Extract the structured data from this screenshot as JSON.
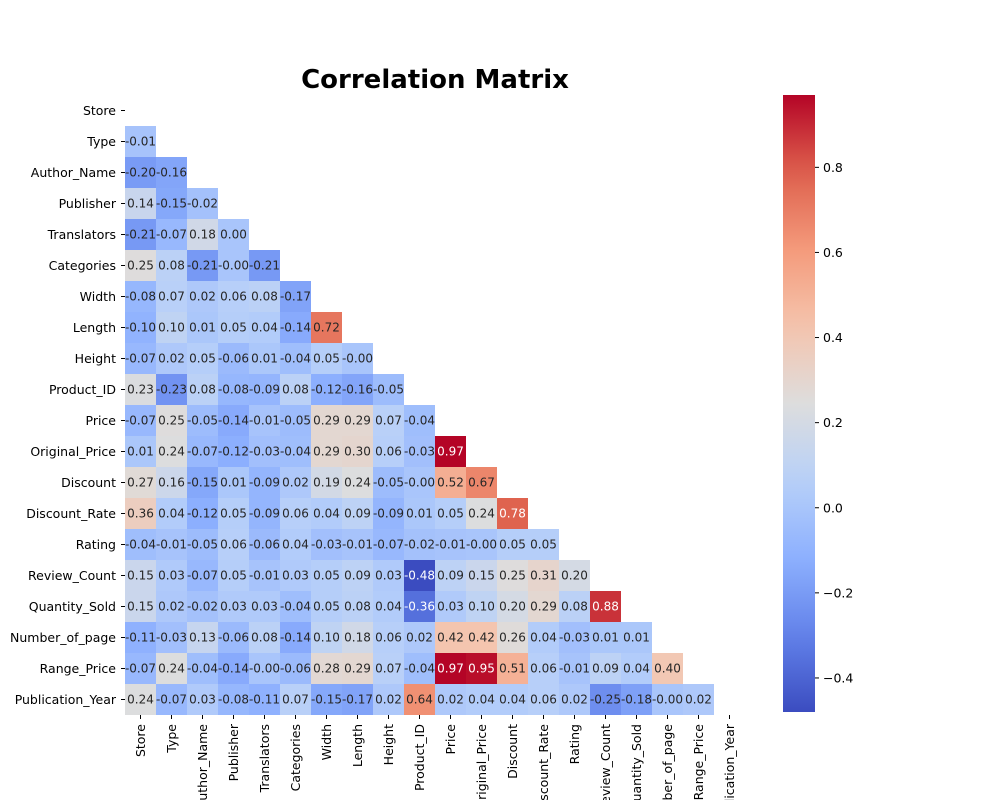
{
  "chart_data": {
    "type": "heatmap",
    "title": "Correlation Matrix",
    "xlabel": "",
    "ylabel": "",
    "variables": [
      "Store",
      "Type",
      "Author_Name",
      "Publisher",
      "Translators",
      "Categories",
      "Width",
      "Length",
      "Height",
      "Product_ID",
      "Price",
      "Original_Price",
      "Discount",
      "Discount_Rate",
      "Rating",
      "Review_Count",
      "Quantity_Sold",
      "Number_of_page",
      "Range_Price",
      "Publication_Year"
    ],
    "x_tick_labels": [
      "Store",
      "Type",
      "Author_Name",
      "Publisher",
      "Translators",
      "Categories",
      "Width",
      "Length",
      "Height",
      "Product_ID",
      "Price",
      "Original_Price",
      "Discount",
      "Discount_Rate",
      "Rating",
      "Review_Count",
      "Quantity_Sold",
      "Number_of_page",
      "Range_Price",
      "Publication_Year"
    ],
    "y_tick_labels": [
      "Store",
      "Type",
      "Author_Name",
      "Publisher",
      "Translators",
      "Categories",
      "Width",
      "Length",
      "Height",
      "Product_ID",
      "Price",
      "Original_Price",
      "Discount",
      "Discount_Rate",
      "Rating",
      "Review_Count",
      "Quantity_Sold",
      "Number_of_page",
      "Range_Price",
      "Publication_Year"
    ],
    "mask": "upper triangle incl. diagonal",
    "lower_triangle_values": [
      [],
      [
        -0.01
      ],
      [
        -0.2,
        -0.16
      ],
      [
        0.14,
        -0.15,
        -0.02
      ],
      [
        -0.21,
        -0.07,
        0.18,
        0.0
      ],
      [
        0.25,
        0.08,
        -0.21,
        -0.0,
        -0.21
      ],
      [
        -0.08,
        0.07,
        0.02,
        0.06,
        0.08,
        -0.17
      ],
      [
        -0.1,
        0.1,
        0.01,
        0.05,
        0.04,
        -0.14,
        0.72
      ],
      [
        -0.07,
        0.02,
        0.05,
        -0.06,
        0.01,
        -0.04,
        0.05,
        -0.0
      ],
      [
        0.23,
        -0.23,
        0.08,
        -0.08,
        -0.09,
        0.08,
        -0.12,
        -0.16,
        -0.05
      ],
      [
        -0.07,
        0.25,
        -0.05,
        -0.14,
        -0.01,
        -0.05,
        0.29,
        0.29,
        0.07,
        -0.04
      ],
      [
        0.01,
        0.24,
        -0.07,
        -0.12,
        -0.03,
        -0.04,
        0.29,
        0.3,
        0.06,
        -0.03,
        0.97
      ],
      [
        0.27,
        0.16,
        -0.15,
        0.01,
        -0.09,
        0.02,
        0.19,
        0.24,
        -0.05,
        -0.0,
        0.52,
        0.67
      ],
      [
        0.36,
        0.04,
        -0.12,
        0.05,
        -0.09,
        0.06,
        0.04,
        0.09,
        -0.09,
        0.01,
        0.05,
        0.24,
        0.78
      ],
      [
        -0.04,
        -0.01,
        -0.05,
        0.06,
        -0.06,
        0.04,
        -0.03,
        -0.01,
        -0.07,
        -0.02,
        -0.01,
        -0.0,
        0.05,
        0.05
      ],
      [
        0.15,
        0.03,
        -0.07,
        0.05,
        -0.01,
        0.03,
        0.05,
        0.09,
        0.03,
        -0.48,
        0.09,
        0.15,
        0.25,
        0.31,
        0.2
      ],
      [
        0.15,
        0.02,
        -0.02,
        0.03,
        0.03,
        -0.04,
        0.05,
        0.08,
        0.04,
        -0.36,
        0.03,
        0.1,
        0.2,
        0.29,
        0.08,
        0.88
      ],
      [
        -0.11,
        -0.03,
        0.13,
        -0.06,
        0.08,
        -0.14,
        0.1,
        0.18,
        0.06,
        0.02,
        0.42,
        0.42,
        0.26,
        0.04,
        -0.03,
        0.01,
        0.01
      ],
      [
        -0.07,
        0.24,
        -0.04,
        -0.14,
        -0.0,
        -0.06,
        0.28,
        0.29,
        0.07,
        -0.04,
        0.97,
        0.95,
        0.51,
        0.06,
        -0.01,
        0.09,
        0.04,
        0.4
      ],
      [
        0.24,
        -0.07,
        0.03,
        -0.08,
        -0.11,
        0.07,
        -0.15,
        -0.17,
        0.02,
        0.64,
        0.02,
        0.04,
        0.04,
        0.06,
        0.02,
        -0.25,
        -0.18,
        -0.0,
        0.02
      ]
    ],
    "colormap": "coolwarm",
    "vmin": -0.48,
    "vmax": 0.97,
    "colorbar_ticks": [
      0.8,
      0.6,
      0.4,
      0.2,
      0.0,
      -0.2,
      -0.4
    ],
    "colorbar_tick_labels": [
      "0.8",
      "0.6",
      "0.4",
      "0.2",
      "0.0",
      "−0.2",
      "−0.4"
    ]
  }
}
